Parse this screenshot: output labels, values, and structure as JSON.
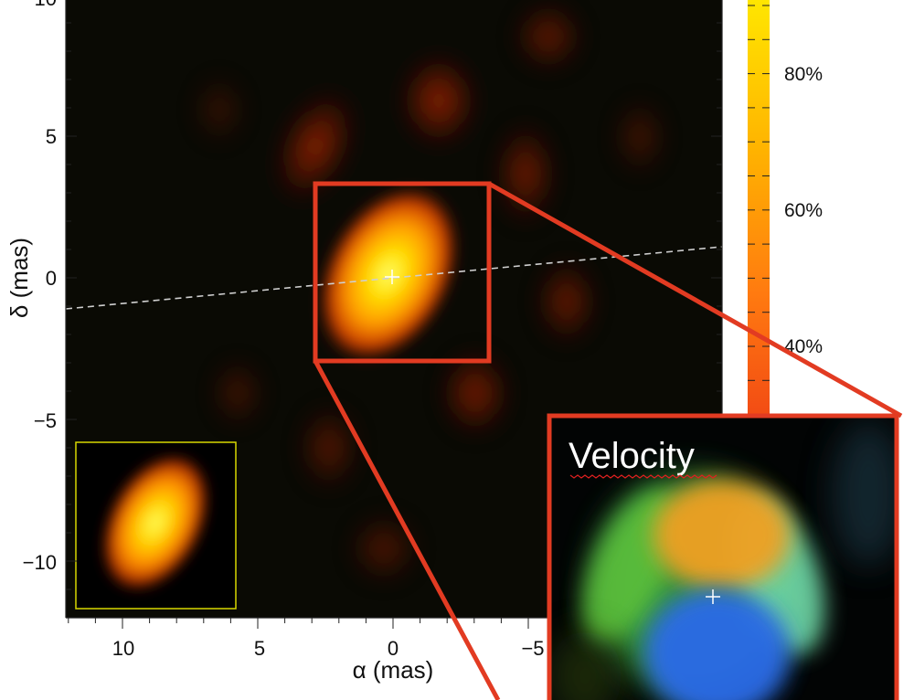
{
  "main_panel": {
    "x_axis_label": "α (mas)",
    "y_axis_label": "δ (mas)",
    "x_ticks": [
      "10",
      "5",
      "0",
      "−5"
    ],
    "y_ticks": [
      "10",
      "5",
      "0",
      "−5",
      "−10"
    ],
    "background_color": "#0a0a04",
    "center_marker": "crosshair-icon",
    "dashed_line_color": "#cfcfcf"
  },
  "colorbar": {
    "labels": [
      "80%",
      "60%",
      "40%"
    ],
    "colors": [
      "#ffe600",
      "#ffb000",
      "#ff7a10",
      "#f44c14"
    ]
  },
  "velocity_inset": {
    "title": "Velocity",
    "frame_color": "#e23b22",
    "components": [
      "orange",
      "green",
      "blue"
    ]
  },
  "beam_inset": {
    "frame_color": "#d8d800"
  },
  "zoom_box": {
    "frame_color": "#e23b22"
  }
}
